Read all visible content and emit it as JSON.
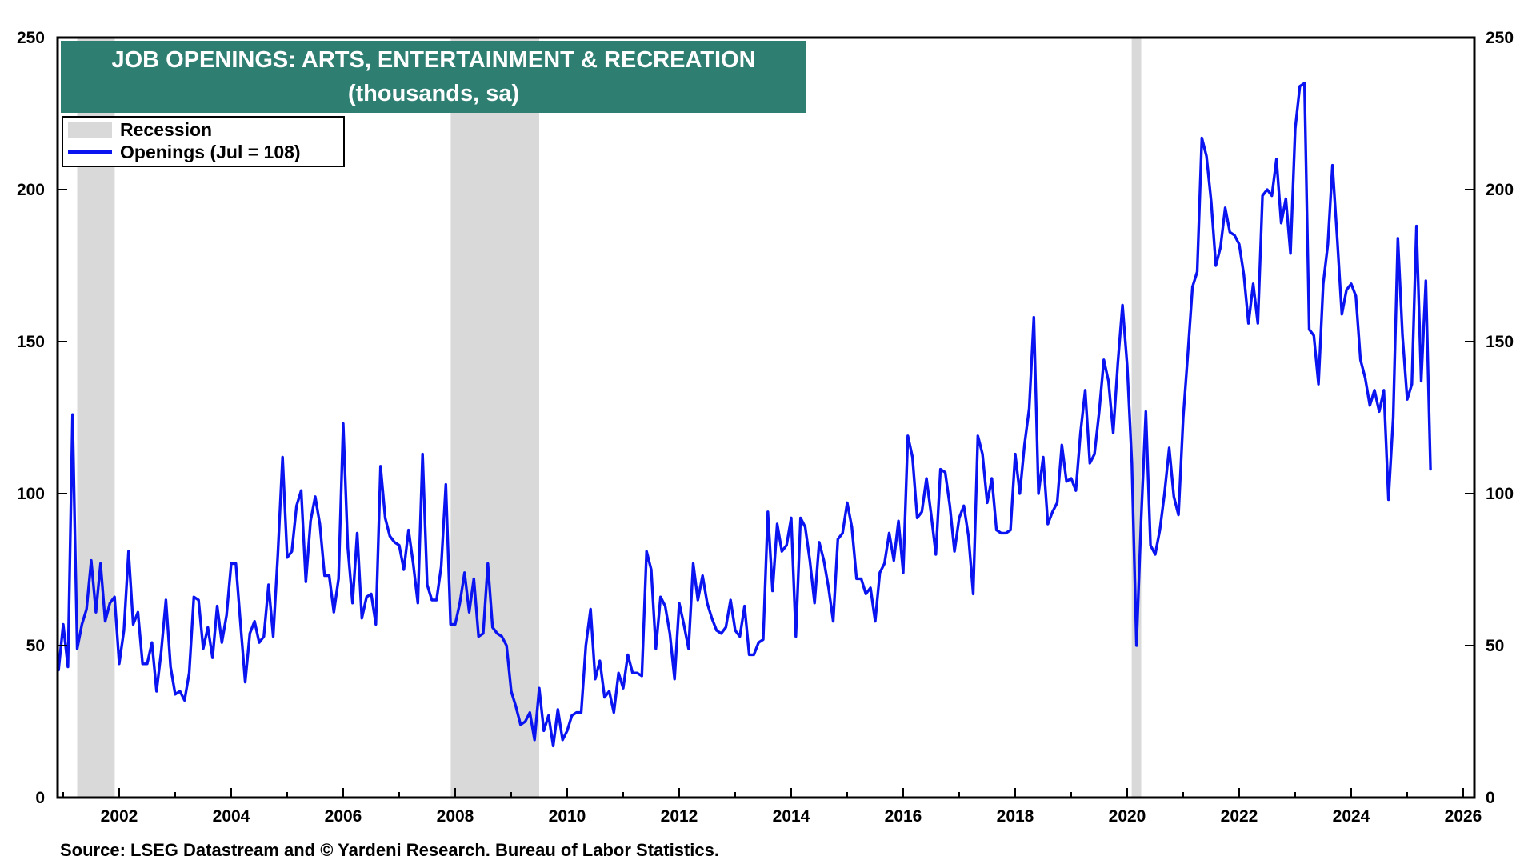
{
  "chart_data": {
    "type": "line",
    "title": "JOB OPENINGS: ARTS, ENTERTAINMENT & RECREATION",
    "subtitle": "(thousands, sa)",
    "source": "Source: LSEG Datastream and © Yardeni Research. Bureau of Labor Statistics.",
    "xlim": [
      2000.9,
      2026.2
    ],
    "ylim": [
      0,
      250
    ],
    "x_ticks": [
      {
        "value": 2002,
        "label": "2002"
      },
      {
        "value": 2004,
        "label": "2004"
      },
      {
        "value": 2006,
        "label": "2006"
      },
      {
        "value": 2008,
        "label": "2008"
      },
      {
        "value": 2010,
        "label": "2010"
      },
      {
        "value": 2012,
        "label": "2012"
      },
      {
        "value": 2014,
        "label": "2014"
      },
      {
        "value": 2016,
        "label": "2016"
      },
      {
        "value": 2018,
        "label": "2018"
      },
      {
        "value": 2020,
        "label": "2020"
      },
      {
        "value": 2022,
        "label": "2022"
      },
      {
        "value": 2024,
        "label": "2024"
      },
      {
        "value": 2026,
        "label": "2026"
      }
    ],
    "y_ticks": [
      {
        "value": 0,
        "label": "0"
      },
      {
        "value": 50,
        "label": "50"
      },
      {
        "value": 100,
        "label": "100"
      },
      {
        "value": 150,
        "label": "150"
      },
      {
        "value": 200,
        "label": "200"
      },
      {
        "value": 250,
        "label": "250"
      }
    ],
    "grid": false,
    "legend_position": "top-left",
    "legend": [
      {
        "key": "recession",
        "label": "Recession",
        "color": "#d9d9d9"
      },
      {
        "key": "openings",
        "label": "Openings (Jul = 108)",
        "color": "#0a14f0"
      }
    ],
    "recessions": [
      [
        2001.25,
        2001.92
      ],
      [
        2007.92,
        2009.5
      ],
      [
        2020.08,
        2020.25
      ]
    ],
    "series": [
      {
        "name": "Openings (Jul = 108)",
        "color": "#0a14f0",
        "x_start": 2000.917,
        "x_step": 0.08333,
        "values": [
          42,
          57,
          43,
          126,
          49,
          57,
          62,
          78,
          61,
          77,
          58,
          64,
          66,
          44,
          55,
          81,
          57,
          61,
          44,
          44,
          51,
          35,
          48,
          65,
          43,
          34,
          35,
          32,
          41,
          66,
          65,
          49,
          56,
          46,
          63,
          51,
          60,
          77,
          77,
          57,
          38,
          54,
          58,
          51,
          53,
          70,
          53,
          80,
          112,
          79,
          81,
          96,
          101,
          71,
          91,
          99,
          90,
          73,
          73,
          61,
          72,
          123,
          82,
          64,
          87,
          59,
          66,
          67,
          57,
          109,
          92,
          86,
          84,
          83,
          75,
          88,
          77,
          64,
          113,
          70,
          65,
          65,
          76,
          103,
          57,
          57,
          64,
          74,
          61,
          72,
          53,
          54,
          77,
          56,
          54,
          53,
          50,
          35,
          30,
          24,
          25,
          28,
          19,
          36,
          22,
          27,
          17,
          29,
          19,
          22,
          27,
          28,
          28,
          50,
          62,
          39,
          45,
          33,
          35,
          28,
          41,
          36,
          47,
          41,
          41,
          40,
          81,
          75,
          49,
          66,
          63,
          54,
          39,
          64,
          57,
          49,
          77,
          65,
          73,
          64,
          59,
          55,
          54,
          56,
          65,
          55,
          53,
          63,
          47,
          47,
          51,
          52,
          94,
          68,
          90,
          81,
          83,
          92,
          53,
          92,
          89,
          78,
          64,
          84,
          78,
          69,
          58,
          85,
          87,
          97,
          89,
          72,
          72,
          67,
          69,
          58,
          74,
          77,
          87,
          78,
          91,
          74,
          119,
          112,
          92,
          94,
          105,
          93,
          80,
          108,
          107,
          96,
          81,
          92,
          96,
          86,
          67,
          119,
          113,
          97,
          105,
          88,
          87,
          87,
          88,
          113,
          100,
          116,
          128,
          158,
          100,
          112,
          90,
          94,
          97,
          116,
          104,
          105,
          101,
          120,
          134,
          110,
          113,
          127,
          144,
          137,
          120,
          143,
          162,
          142,
          110,
          50,
          92,
          127,
          83,
          80,
          88,
          100,
          115,
          99,
          93,
          125,
          146,
          168,
          173,
          217,
          211,
          196,
          175,
          181,
          194,
          186,
          185,
          182,
          172,
          156,
          169,
          156,
          198,
          200,
          198,
          210,
          189,
          197,
          179,
          220,
          234,
          235,
          154,
          152,
          136,
          169,
          182,
          208,
          184,
          159,
          167,
          169,
          165,
          144,
          138,
          129,
          134,
          127,
          134,
          98,
          125,
          184,
          152,
          131,
          136,
          188,
          137,
          170,
          108
        ]
      }
    ]
  }
}
